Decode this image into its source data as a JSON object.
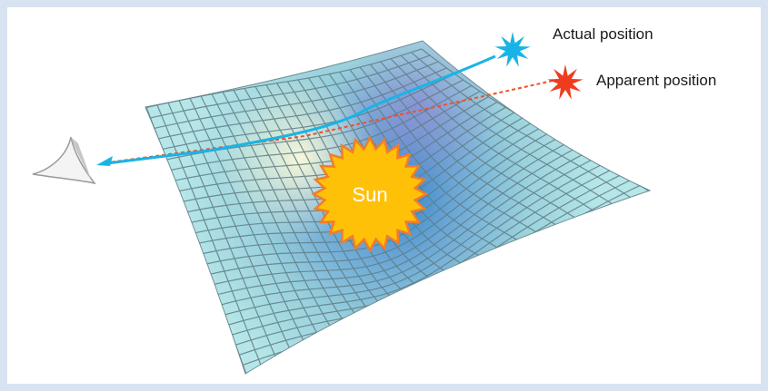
{
  "diagram": {
    "labels": {
      "actual_position": "Actual position",
      "apparent_position": "Apparent position",
      "sun": "Sun"
    },
    "icons": {
      "observer": "eye-icon",
      "actual_star": "star-burst-icon",
      "apparent_star": "star-burst-icon"
    },
    "colors": {
      "background": "#d7e3f1",
      "surface_grid": "#8ccfd8",
      "surface_well": "#2e7fc4",
      "actual_ray": "#19b4e6",
      "apparent_ray": "#f0502a",
      "actual_star": "#19b4e6",
      "apparent_star": "#f03c1e",
      "sun_fill": "#ffc107",
      "sun_outline": "#f07d2a"
    }
  }
}
